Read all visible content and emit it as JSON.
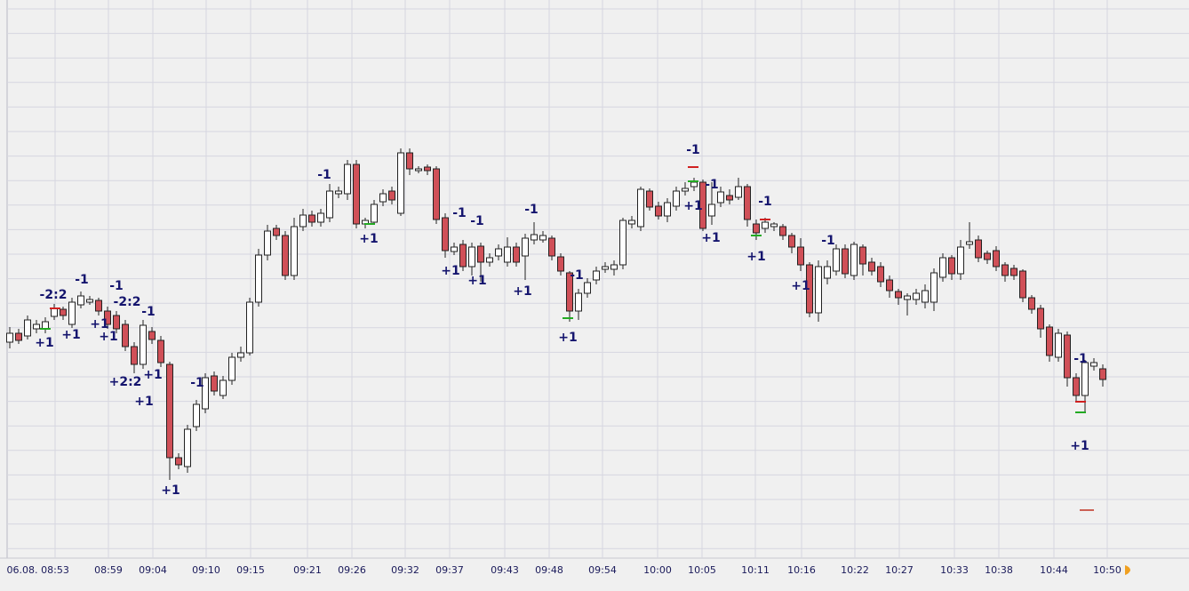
{
  "chart_data": {
    "type": "candlestick",
    "open": [
      280,
      290,
      287,
      295,
      295,
      309,
      317,
      300,
      322,
      325,
      327,
      315,
      310,
      300,
      275,
      255,
      292,
      282,
      255,
      150,
      140,
      185,
      205,
      242,
      220,
      237,
      263,
      268,
      325,
      378,
      408,
      400,
      355,
      410,
      423,
      415,
      420,
      447,
      447,
      480,
      413,
      415,
      438,
      450,
      425,
      493,
      473,
      477,
      475,
      420,
      382,
      390,
      365,
      388,
      370,
      377,
      370,
      387,
      377,
      395,
      395,
      397,
      376,
      358,
      315,
      335,
      350,
      362,
      362,
      367,
      413,
      410,
      450,
      433,
      422,
      433,
      450,
      455,
      460,
      422,
      437,
      445,
      443,
      455,
      413,
      408,
      410,
      410,
      400,
      387,
      367,
      313,
      352,
      360,
      385,
      355,
      387,
      370,
      365,
      350,
      337,
      328,
      328,
      325,
      325,
      353,
      375,
      357,
      390,
      395,
      380,
      383,
      367,
      363,
      360,
      330,
      318,
      297,
      263,
      288,
      240,
      220,
      253,
      250
    ],
    "high": [
      297,
      295,
      310,
      305,
      308,
      323,
      320,
      330,
      337,
      332,
      330,
      320,
      315,
      305,
      280,
      305,
      297,
      287,
      258,
      155,
      187,
      215,
      245,
      247,
      242,
      268,
      275,
      330,
      385,
      412,
      412,
      405,
      420,
      430,
      428,
      430,
      458,
      455,
      485,
      485,
      420,
      440,
      452,
      455,
      498,
      498,
      478,
      480,
      478,
      425,
      392,
      395,
      392,
      392,
      380,
      390,
      398,
      392,
      402,
      415,
      405,
      400,
      380,
      360,
      340,
      352,
      365,
      370,
      372,
      420,
      422,
      455,
      453,
      438,
      442,
      455,
      460,
      465,
      463,
      460,
      455,
      452,
      465,
      458,
      418,
      420,
      415,
      413,
      403,
      397,
      370,
      372,
      372,
      390,
      390,
      393,
      390,
      375,
      370,
      355,
      340,
      335,
      340,
      345,
      363,
      380,
      378,
      395,
      415,
      400,
      383,
      388,
      370,
      367,
      362,
      333,
      322,
      300,
      295,
      292,
      245,
      260,
      262,
      255
    ],
    "low": [
      273,
      278,
      283,
      290,
      290,
      305,
      305,
      296,
      318,
      322,
      310,
      295,
      290,
      270,
      245,
      250,
      278,
      252,
      125,
      137,
      133,
      180,
      200,
      220,
      216,
      232,
      258,
      265,
      320,
      372,
      395,
      350,
      350,
      405,
      410,
      410,
      415,
      442,
      440,
      408,
      408,
      412,
      433,
      435,
      422,
      468,
      470,
      468,
      413,
      375,
      378,
      360,
      355,
      348,
      365,
      372,
      365,
      365,
      350,
      390,
      392,
      372,
      355,
      303,
      305,
      330,
      345,
      358,
      355,
      362,
      408,
      405,
      428,
      418,
      415,
      428,
      445,
      450,
      405,
      412,
      432,
      435,
      440,
      410,
      395,
      403,
      405,
      395,
      380,
      360,
      308,
      303,
      345,
      355,
      352,
      350,
      355,
      355,
      342,
      330,
      322,
      310,
      322,
      318,
      315,
      348,
      350,
      350,
      385,
      370,
      368,
      360,
      348,
      350,
      325,
      312,
      285,
      258,
      258,
      230,
      213,
      200,
      248,
      230
    ],
    "close": [
      290,
      282,
      305,
      300,
      303,
      318,
      310,
      325,
      332,
      328,
      315,
      300,
      295,
      275,
      255,
      299,
      283,
      257,
      150,
      142,
      182,
      210,
      240,
      225,
      237,
      263,
      268,
      325,
      378,
      405,
      400,
      355,
      410,
      423,
      415,
      425,
      450,
      450,
      480,
      413,
      417,
      435,
      447,
      440,
      493,
      475,
      475,
      473,
      418,
      383,
      387,
      365,
      387,
      370,
      375,
      385,
      387,
      370,
      397,
      401,
      400,
      377,
      360,
      315,
      335,
      347,
      360,
      365,
      367,
      417,
      417,
      452,
      432,
      422,
      437,
      450,
      453,
      460,
      408,
      435,
      449,
      440,
      455,
      418,
      403,
      415,
      413,
      400,
      387,
      367,
      313,
      365,
      365,
      385,
      357,
      390,
      368,
      360,
      348,
      338,
      330,
      332,
      335,
      338,
      358,
      375,
      357,
      387,
      393,
      375,
      373,
      365,
      355,
      355,
      330,
      317,
      295,
      265,
      290,
      240,
      220,
      257,
      257,
      238
    ],
    "annotations": [
      "-2:2",
      "+1",
      "-1",
      "+1",
      "-1",
      "-2:2",
      "+1",
      "+1",
      "-1",
      "+2:2",
      "+1",
      "+1",
      "-1",
      "+1",
      "-1",
      "+1",
      "-1",
      "-1",
      "+1",
      "+1",
      "-1",
      "+1",
      "-1",
      "+1",
      "-1",
      "-1",
      "+1",
      "+1",
      "-1",
      "+1",
      "-1",
      "+1",
      "-1",
      "+1"
    ],
    "time_labels": [
      "06.08.",
      "08:53",
      "08:59",
      "09:04",
      "09:10",
      "09:15",
      "09:21",
      "09:26",
      "09:32",
      "09:37",
      "09:43",
      "09:48",
      "09:54",
      "10:00",
      "10:05",
      "10:11",
      "10:16",
      "10:22",
      "10:27",
      "10:33",
      "10:38",
      "10:44",
      "10:50"
    ]
  }
}
